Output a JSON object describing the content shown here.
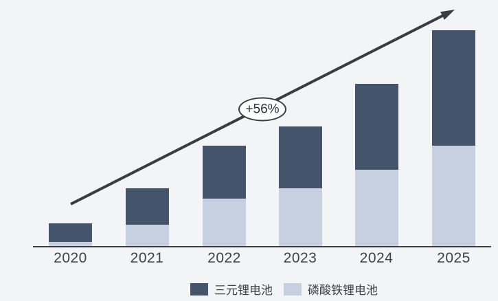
{
  "chart_data": {
    "type": "bar",
    "stacked": true,
    "title": "",
    "categories": [
      "2020",
      "2021",
      "2022",
      "2023",
      "2024",
      "2025"
    ],
    "series": [
      {
        "key": "lfp",
        "name": "磷酸铁锂电池",
        "color": "#C7D0E0",
        "values": [
          7,
          32,
          70,
          85,
          112,
          147
        ]
      },
      {
        "key": "ternary",
        "name": "三元锂电池",
        "color": "#44546A",
        "values": [
          27,
          53,
          77,
          90,
          125,
          168
        ]
      }
    ],
    "totals": [
      34,
      85,
      147,
      175,
      237,
      315
    ],
    "ylim": [
      0,
      330
    ],
    "grid": false,
    "y_axis_visible": false,
    "legend_position": "bottom",
    "annotation": {
      "label": "+56%"
    }
  },
  "annotation": {
    "label": "+56%"
  },
  "legend": {
    "items": [
      {
        "label": "三元锂电池",
        "color": "#44546A"
      },
      {
        "label": "磷酸铁锂电池",
        "color": "#C7D0E0"
      }
    ]
  },
  "colors": {
    "background": "#F3F4F6",
    "dark_series": "#44546A",
    "light_series": "#C7D0E0",
    "arrow": "#393C42",
    "axis": "#3C3F45",
    "tick_label": "#3F4347"
  }
}
